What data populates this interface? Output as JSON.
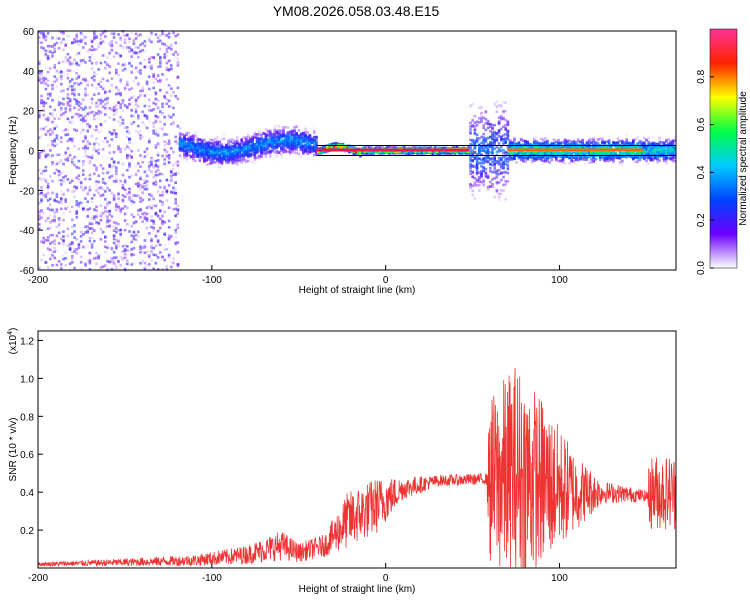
{
  "title": "YM08.2026.058.03.48.E15",
  "colors": {
    "line": "#ee3333",
    "frame": "#000000",
    "center_band": "#e8184a"
  },
  "chart_data": [
    {
      "type": "heatmap",
      "name": "spectrogram",
      "xlabel": "Height of straight line (km)",
      "ylabel": "Frequency (Hz)",
      "xlim": [
        -200,
        167
      ],
      "ylim": [
        -60,
        60
      ],
      "x_ticks": [
        -200,
        -100,
        0,
        100
      ],
      "y_ticks": [
        -60,
        -40,
        -20,
        0,
        20,
        40,
        60
      ],
      "colorbar": {
        "label": "Normalized spectral amplitude",
        "range": [
          0,
          1
        ],
        "ticks": [
          "0.0",
          "0.2",
          "0.4",
          "0.6",
          "0.8"
        ],
        "colormap": [
          "#ffffff",
          "#6a00ff",
          "#0044ff",
          "#00ccff",
          "#00ff44",
          "#ffff00",
          "#ff2200",
          "#ff3399"
        ]
      },
      "segments": [
        {
          "x_from": -200,
          "x_to": -120,
          "level": 0.25,
          "spread_hz": 60,
          "description_level": "broad noise"
        },
        {
          "x_from": -120,
          "x_to": -40,
          "level": 0.45,
          "spread_hz": 6
        },
        {
          "x_from": -40,
          "x_to": 48,
          "level": 1.0,
          "spread_hz": 1.5
        },
        {
          "x_from": 48,
          "x_to": 70,
          "level": 0.4,
          "spread_hz": 20
        },
        {
          "x_from": 70,
          "x_to": 148,
          "level": 0.7,
          "spread_hz": 5
        },
        {
          "x_from": 148,
          "x_to": 167,
          "level": 0.6,
          "spread_hz": 5
        }
      ]
    },
    {
      "type": "line",
      "name": "snr",
      "xlabel": "Height of straight line (km)",
      "ylabel": "SNR (10 * v/v)",
      "yscale_label": "(x10",
      "yscale_exp": "4",
      "yscale_close": ")",
      "xlim": [
        -200,
        167
      ],
      "ylim": [
        0,
        1.25
      ],
      "x_ticks": [
        -200,
        -100,
        0,
        100
      ],
      "y_ticks": [
        0.2,
        0.4,
        0.6,
        0.8,
        1.0,
        1.2
      ],
      "envelope": [
        {
          "x": -200,
          "base": 0.02,
          "amp": 0.01
        },
        {
          "x": -150,
          "base": 0.03,
          "amp": 0.02
        },
        {
          "x": -110,
          "base": 0.04,
          "amp": 0.03
        },
        {
          "x": -80,
          "base": 0.07,
          "amp": 0.05
        },
        {
          "x": -60,
          "base": 0.12,
          "amp": 0.08
        },
        {
          "x": -50,
          "base": 0.08,
          "amp": 0.05
        },
        {
          "x": -35,
          "base": 0.12,
          "amp": 0.06
        },
        {
          "x": -22,
          "base": 0.25,
          "amp": 0.15
        },
        {
          "x": -5,
          "base": 0.33,
          "amp": 0.15
        },
        {
          "x": 10,
          "base": 0.42,
          "amp": 0.06
        },
        {
          "x": 30,
          "base": 0.46,
          "amp": 0.03
        },
        {
          "x": 58,
          "base": 0.47,
          "amp": 0.03
        },
        {
          "x": 60,
          "base": 0.45,
          "amp": 0.45
        },
        {
          "x": 75,
          "base": 0.5,
          "amp": 0.6
        },
        {
          "x": 90,
          "base": 0.45,
          "amp": 0.45
        },
        {
          "x": 110,
          "base": 0.4,
          "amp": 0.2
        },
        {
          "x": 125,
          "base": 0.4,
          "amp": 0.06
        },
        {
          "x": 150,
          "base": 0.38,
          "amp": 0.03
        },
        {
          "x": 152,
          "base": 0.4,
          "amp": 0.2
        },
        {
          "x": 167,
          "base": 0.4,
          "amp": 0.2
        }
      ]
    }
  ]
}
